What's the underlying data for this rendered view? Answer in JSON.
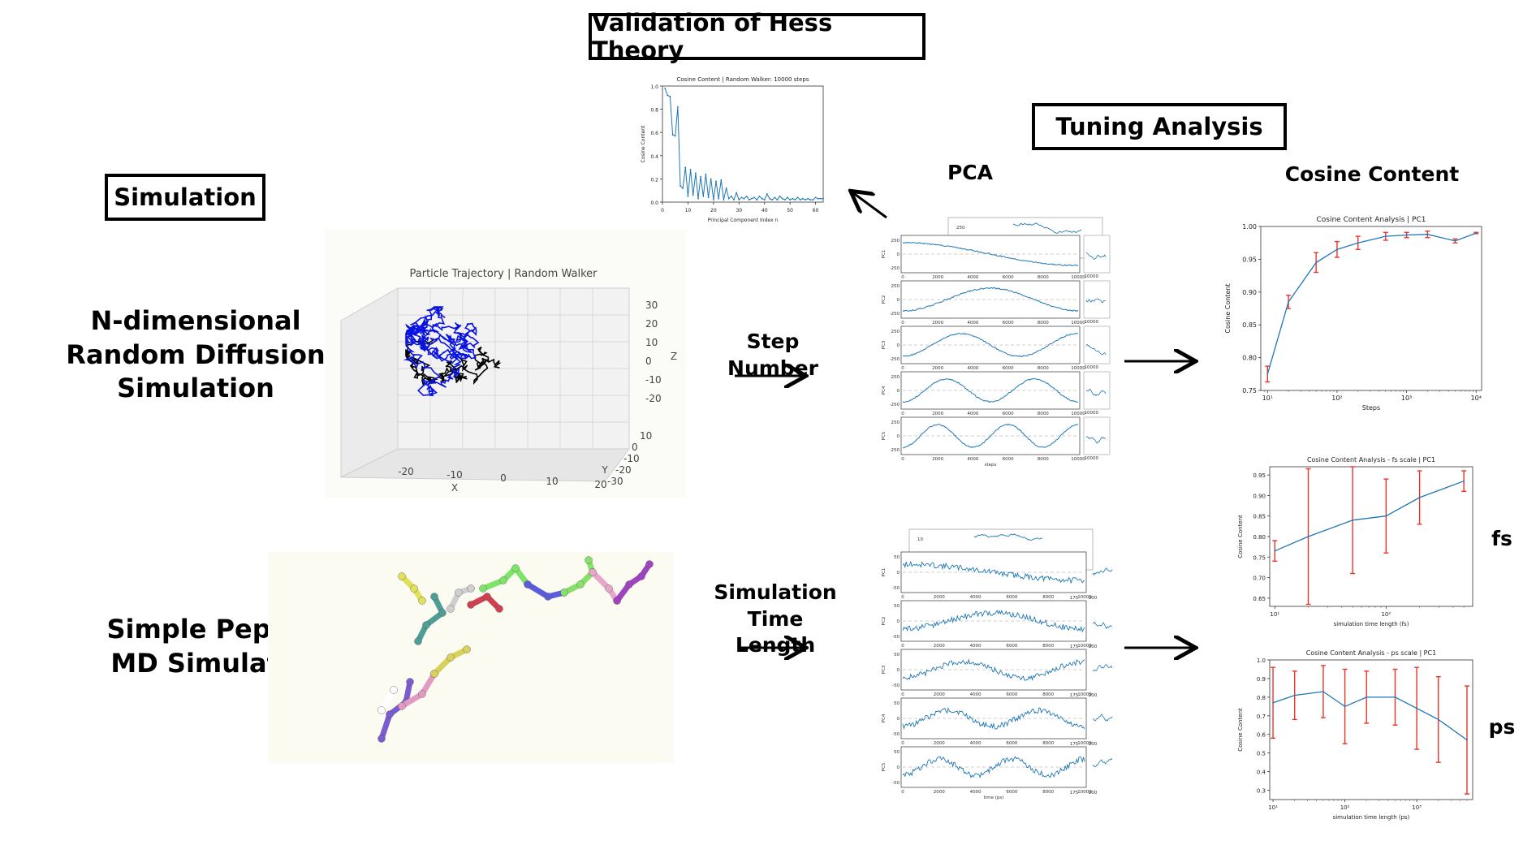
{
  "headers": {
    "validation": "Validation of Hess Theory",
    "tuning": "Tuning Analysis",
    "simulation": "Simulation"
  },
  "rows": {
    "random_walk_title": "N-dimensional Random Diffusion Simulation",
    "random_walk_lines": [
      "N-dimensional",
      "Random Diffusion",
      "Simulation"
    ],
    "peptide_lines": [
      "Simple Peptide",
      "MD Simulation"
    ]
  },
  "section_labels": {
    "pca": "PCA",
    "cosine_content": "Cosine Content",
    "step_number": "Step Number",
    "sim_time_lines": [
      "Simulation",
      "Time Length"
    ],
    "fs": "fs",
    "ps": "ps"
  },
  "trajectory_3d": {
    "title": "Particle Trajectory | Random Walker",
    "x_ticks": [
      "-20",
      "-10",
      "0",
      "10",
      "20"
    ],
    "y_ticks": [
      "10",
      "0",
      "-10",
      "-20",
      "-30"
    ],
    "z_ticks": [
      "30",
      "20",
      "10",
      "0",
      "-10",
      "-20"
    ],
    "xlabel": "X",
    "ylabel": "Y",
    "zlabel": "Z"
  },
  "pca_random": {
    "ylabels": [
      "PC1",
      "PC2",
      "PC3",
      "PC4",
      "PC5"
    ],
    "x_ticks": [
      "0",
      "2000",
      "4000",
      "6000",
      "8000",
      "10000"
    ],
    "xlabel": "steps",
    "y_ticks": [
      "250",
      "0",
      "-250"
    ],
    "back_tick": "250",
    "side_ticks": "10000"
  },
  "pca_md": {
    "ylabels": [
      "PC1",
      "PC2",
      "PC3",
      "PC4",
      "PC5"
    ],
    "x_ticks": [
      "0",
      "2000",
      "4000",
      "6000",
      "8000",
      "10000"
    ],
    "xlabel": "time (ps)",
    "y_ticks": [
      "50",
      "0",
      "-50"
    ],
    "back_tick": "10",
    "side_ticks": [
      "175",
      "200"
    ]
  },
  "chart_data": [
    {
      "type": "line",
      "title": "Cosine Content | Random Walker: 10000 steps",
      "xlabel": "Principal Component Index n",
      "ylabel": "Cosine Content",
      "xlim": [
        0,
        63
      ],
      "ylim": [
        0,
        1.0
      ],
      "x_ticks": [
        "0",
        "10",
        "20",
        "30",
        "40",
        "50",
        "60"
      ],
      "y_ticks": [
        "0.0",
        "0.2",
        "0.4",
        "0.6",
        "0.8",
        "1.0"
      ],
      "x": [
        1,
        2,
        3,
        4,
        5,
        6,
        7,
        8,
        9,
        10,
        11,
        12,
        13,
        14,
        15,
        16,
        17,
        18,
        19,
        20,
        21,
        22,
        23,
        24,
        25,
        26,
        27,
        28,
        29,
        30,
        31,
        32,
        33,
        34,
        35,
        36,
        37,
        38,
        39,
        40,
        41,
        42,
        43,
        44,
        45,
        46,
        47,
        48,
        49,
        50,
        51,
        52,
        53,
        54,
        55,
        56,
        57,
        58,
        59,
        60,
        61,
        62,
        63
      ],
      "y": [
        0.98,
        0.92,
        0.91,
        0.58,
        0.57,
        0.82,
        0.14,
        0.12,
        0.3,
        0.05,
        0.28,
        0.06,
        0.25,
        0.03,
        0.22,
        0.05,
        0.24,
        0.04,
        0.2,
        0.02,
        0.18,
        0.03,
        0.19,
        0.02,
        0.12,
        0.03,
        0.05,
        0.02,
        0.08,
        0.02,
        0.04,
        0.03,
        0.05,
        0.02,
        0.03,
        0.04,
        0.02,
        0.05,
        0.03,
        0.02,
        0.07,
        0.03,
        0.02,
        0.04,
        0.02,
        0.05,
        0.03,
        0.02,
        0.04,
        0.02,
        0.03,
        0.02,
        0.04,
        0.02,
        0.03,
        0.02,
        0.03,
        0.02,
        0.02,
        0.04,
        0.03,
        0.03,
        0.03
      ]
    },
    {
      "type": "line",
      "title": "Cosine Content Analysis | PC1",
      "xlabel": "Steps",
      "ylabel": "Cosine Content",
      "xscale": "log",
      "xlim": [
        8,
        12000
      ],
      "ylim": [
        0.75,
        1.0
      ],
      "x_ticks": [
        "10¹",
        "10²",
        "10³",
        "10⁴"
      ],
      "y_ticks": [
        "0.75",
        "0.80",
        "0.85",
        "0.90",
        "0.95",
        "1.00"
      ],
      "x": [
        10,
        20,
        50,
        100,
        200,
        500,
        1000,
        2000,
        5000,
        10000
      ],
      "y": [
        0.775,
        0.885,
        0.945,
        0.965,
        0.975,
        0.985,
        0.987,
        0.988,
        0.978,
        0.99
      ],
      "err": [
        0.012,
        0.01,
        0.015,
        0.012,
        0.01,
        0.006,
        0.004,
        0.005,
        0.003,
        0.001
      ]
    },
    {
      "type": "line",
      "title": "Cosine Content Analysis - fs scale | PC1",
      "xlabel": "simulation time length (fs)",
      "ylabel": "Cosine Content",
      "xscale": "log",
      "xlim": [
        9,
        600
      ],
      "ylim": [
        0.63,
        0.97
      ],
      "x_ticks": [
        "10¹",
        "10²"
      ],
      "y_ticks": [
        "0.65",
        "0.70",
        "0.75",
        "0.80",
        "0.85",
        "0.90",
        "0.95"
      ],
      "x": [
        10,
        20,
        50,
        100,
        200,
        500
      ],
      "y": [
        0.765,
        0.8,
        0.84,
        0.85,
        0.895,
        0.935
      ],
      "err": [
        0.025,
        0.165,
        0.13,
        0.09,
        0.065,
        0.025
      ]
    },
    {
      "type": "line",
      "title": "Cosine Content Analysis - ps scale | PC1",
      "xlabel": "simulation time length (ps)",
      "ylabel": "Cosine Content",
      "xscale": "log",
      "xlim": [
        9,
        6000
      ],
      "ylim": [
        0.25,
        1.0
      ],
      "x_ticks": [
        "10¹",
        "10²",
        "10³"
      ],
      "y_ticks": [
        "0.3",
        "0.4",
        "0.5",
        "0.6",
        "0.7",
        "0.8",
        "0.9",
        "1.0"
      ],
      "x": [
        10,
        20,
        50,
        100,
        200,
        500,
        1000,
        2000,
        5000
      ],
      "y": [
        0.77,
        0.81,
        0.83,
        0.75,
        0.8,
        0.8,
        0.74,
        0.68,
        0.57
      ],
      "err": [
        0.19,
        0.13,
        0.14,
        0.2,
        0.14,
        0.15,
        0.22,
        0.23,
        0.29
      ]
    }
  ],
  "colors": {
    "line": "#1f77b4",
    "error_bar": "#e8352b",
    "walker_blue": "#0a14e0",
    "walker_black": "#000000"
  }
}
